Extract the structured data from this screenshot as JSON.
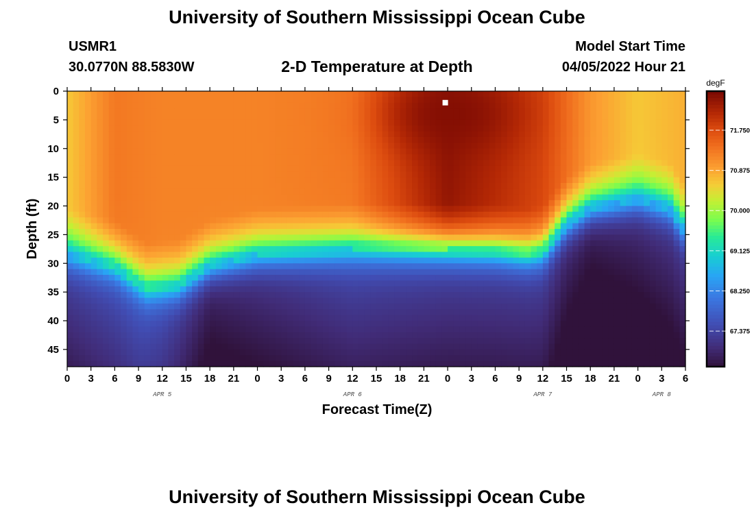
{
  "header": {
    "title": "University of Southern Mississippi Ocean Cube",
    "station_id": "USMR1",
    "coordinates": "30.0770N  88.5830W",
    "model_start_label": "Model Start Time",
    "model_start_value": "04/05/2022 Hour 21"
  },
  "footer": {
    "title": "University of Southern Mississippi Ocean Cube"
  },
  "chart_data": {
    "type": "heatmap",
    "title": "2-D Temperature at Depth",
    "xlabel": "Forecast Time(Z)",
    "ylabel": "Depth (ft)",
    "x_range_hours": [
      0,
      78
    ],
    "y_range_ft": [
      0,
      48
    ],
    "x_tick_labels": [
      "0",
      "3",
      "6",
      "9",
      "12",
      "15",
      "18",
      "21",
      "0",
      "3",
      "6",
      "9",
      "12",
      "15",
      "18",
      "21",
      "0",
      "3",
      "6",
      "9",
      "12",
      "15",
      "18",
      "21",
      "0",
      "3",
      "6"
    ],
    "y_tick_labels": [
      "0",
      "5",
      "10",
      "15",
      "20",
      "25",
      "30",
      "35",
      "40",
      "45"
    ],
    "y_tick_values": [
      0,
      5,
      10,
      15,
      20,
      25,
      30,
      35,
      40,
      45
    ],
    "day_labels": [
      {
        "text": "APR 5",
        "hour": 12
      },
      {
        "text": "APR 6",
        "hour": 36
      },
      {
        "text": "APR 7",
        "hour": 60
      },
      {
        "text": "APR 8",
        "hour": 75
      }
    ],
    "colorbar": {
      "unit": "degF",
      "min": 66.6,
      "max": 72.6,
      "labels": [
        "71.750",
        "70.875",
        "70.000",
        "69.125",
        "68.250",
        "67.375"
      ],
      "values": [
        71.75,
        70.875,
        70.0,
        69.125,
        68.25,
        67.375
      ]
    },
    "marker": {
      "hour": 47.7,
      "depth_ft": 2.0
    },
    "thermocline_depth_ft": {
      "hours": [
        0,
        6,
        10,
        14,
        18,
        24,
        30,
        36,
        42,
        48,
        54,
        58,
        60,
        63,
        66,
        72,
        76,
        78
      ],
      "values": [
        28.5,
        30.5,
        34.5,
        34.0,
        30.5,
        28.5,
        28.0,
        27.5,
        27.5,
        27.5,
        27.8,
        28.5,
        28.0,
        23.0,
        20.5,
        19.0,
        20.5,
        24.5
      ]
    },
    "warm_core": {
      "hour": 48.5,
      "depth_ft": 4.0,
      "value": 72.5
    },
    "surface_temperature_degF": {
      "hours": [
        0,
        6,
        12,
        24,
        36,
        48,
        60,
        66,
        72,
        78
      ],
      "values": [
        70.6,
        71.3,
        71.2,
        71.2,
        71.3,
        72.4,
        71.8,
        71.0,
        70.6,
        70.8
      ]
    },
    "bottom_temperature_degF": {
      "hours": [
        0,
        9,
        12,
        18,
        24,
        36,
        48,
        60,
        63,
        66,
        72,
        78
      ],
      "values": [
        67.3,
        67.6,
        67.5,
        66.9,
        67.1,
        67.4,
        67.3,
        67.3,
        67.0,
        66.8,
        67.0,
        67.2
      ]
    }
  }
}
